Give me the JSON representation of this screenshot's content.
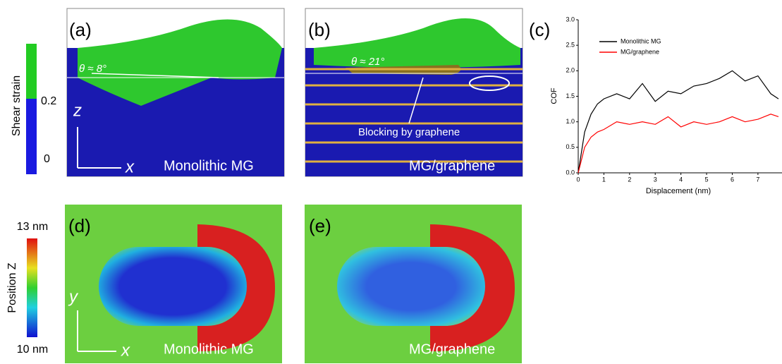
{
  "panels": [
    {
      "label": "(a)",
      "annotation": "θ ≈ 8°",
      "caption": "Monolithic MG",
      "axes": [
        "z",
        "x"
      ]
    },
    {
      "label": "(b)",
      "annotation": "θ ≈ 21°",
      "note": "Blocking by graphene",
      "caption": "MG/graphene"
    },
    {
      "label": "(d)",
      "caption": "Monolithic MG",
      "axes": [
        "y",
        "x"
      ]
    },
    {
      "label": "(e)",
      "caption": "MG/graphene"
    }
  ],
  "colorbars": [
    {
      "title": "Shear strain",
      "ticks": [
        "0.2",
        "0"
      ]
    },
    {
      "title": "Position Z",
      "ticks": [
        "13 nm",
        "10 nm"
      ]
    }
  ],
  "chart_data": {
    "type": "line",
    "label": "(c)",
    "x_label": "Displacement (nm)",
    "y_label": "COF",
    "x": [
      0,
      0.25,
      0.5,
      0.75,
      1,
      1.5,
      2,
      2.5,
      3,
      3.5,
      4,
      4.5,
      5,
      5.5,
      6,
      6.5,
      7,
      7.5,
      7.8
    ],
    "series": [
      {
        "name": "Monolithic MG",
        "color": "#000000",
        "values": [
          0,
          0.8,
          1.15,
          1.35,
          1.45,
          1.55,
          1.45,
          1.75,
          1.4,
          1.6,
          1.55,
          1.7,
          1.75,
          1.85,
          2.0,
          1.8,
          1.9,
          1.55,
          1.45
        ]
      },
      {
        "name": "MG/graphene",
        "color": "#ff0000",
        "values": [
          0,
          0.5,
          0.7,
          0.8,
          0.85,
          1.0,
          0.95,
          1.0,
          0.95,
          1.1,
          0.9,
          1.0,
          0.95,
          1.0,
          1.1,
          1.0,
          1.05,
          1.15,
          1.1
        ]
      }
    ],
    "xlim": [
      0,
      7.8
    ],
    "ylim": [
      0,
      3
    ],
    "xticks": [
      0,
      1,
      2,
      3,
      4,
      5,
      6,
      7
    ],
    "yticks": [
      {
        "value": 0,
        "label": "0.0"
      },
      0.5,
      {
        "value": 1,
        "label": "1.0"
      },
      1.5,
      {
        "value": 2,
        "label": "2.0"
      },
      2.5,
      {
        "value": 3,
        "label": "3.0"
      }
    ]
  }
}
